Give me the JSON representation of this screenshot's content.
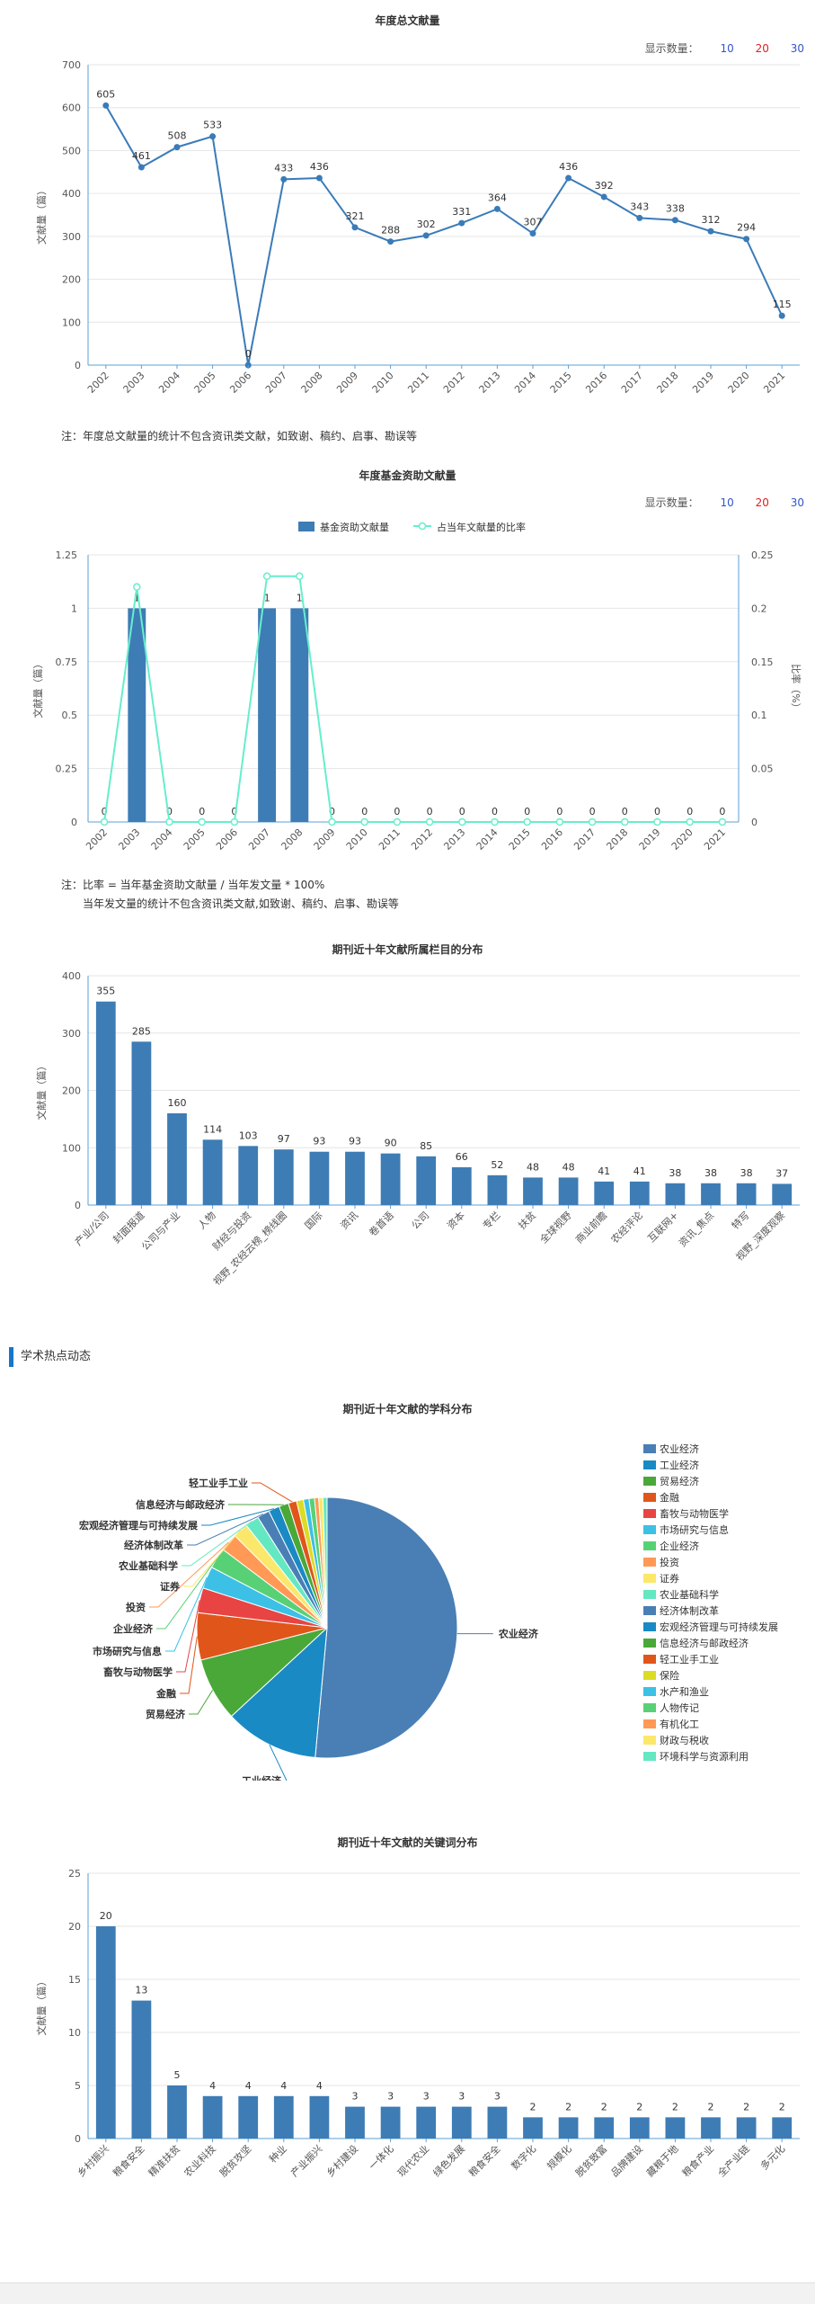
{
  "count_control": {
    "label": "显示数量：",
    "options": [
      "10",
      "20",
      "30"
    ],
    "colors": [
      "#3355cc",
      "#e02020",
      "#3355cc"
    ]
  },
  "section": {
    "title": "学术热点动态"
  },
  "notes": {
    "annual": "注：年度总文献量的统计不包含资讯类文献，如致谢、稿约、启事、勘误等",
    "fund_1": "注：比率 = 当年基金资助文献量 / 当年发文量 * 100%",
    "fund_2": "当年发文量的统计不包含资讯类文献,如致谢、稿约、启事、勘误等"
  },
  "colors": {
    "primary": "#3e7cb5",
    "line": "#3a7bb8",
    "ratio": "#66eecc",
    "grid": "#e6e6e6",
    "axis": "#5aa0d8",
    "section_accent": "#1677c8"
  },
  "chart_data": [
    {
      "type": "line",
      "title": "年度总文献量",
      "ylabel": "文献量（篇）",
      "ylim": [
        0,
        700
      ],
      "yticks": [
        0,
        100,
        200,
        300,
        400,
        500,
        600,
        700
      ],
      "grid": true,
      "x": [
        "2002",
        "2003",
        "2004",
        "2005",
        "2006",
        "2007",
        "2008",
        "2009",
        "2010",
        "2011",
        "2012",
        "2013",
        "2014",
        "2015",
        "2016",
        "2017",
        "2018",
        "2019",
        "2020",
        "2021"
      ],
      "values": [
        605,
        461,
        508,
        533,
        0,
        433,
        436,
        321,
        288,
        302,
        331,
        364,
        307,
        436,
        392,
        343,
        338,
        312,
        294,
        115
      ],
      "labels": [
        "605",
        "461",
        "508",
        "533",
        "0",
        "433",
        "436",
        "321",
        "288",
        "302",
        "331",
        "364",
        "307",
        "436",
        "392",
        "343",
        "338",
        "312",
        "294",
        "115"
      ]
    },
    {
      "type": "bar",
      "title": "年度基金资助文献量",
      "ylabel": "文献量（篇）",
      "y2label": "比率（%）",
      "ylim": [
        0,
        1.25
      ],
      "yticks": [
        "0",
        "0.25",
        "0.5",
        "0.75",
        "1",
        "1.25"
      ],
      "y2lim": [
        0,
        0.25
      ],
      "y2ticks": [
        "0",
        "0.05",
        "0.1",
        "0.15",
        "0.2",
        "0.25"
      ],
      "legend_position": "top",
      "x": [
        "2002",
        "2003",
        "2004",
        "2005",
        "2006",
        "2007",
        "2008",
        "2009",
        "2010",
        "2011",
        "2012",
        "2013",
        "2014",
        "2015",
        "2016",
        "2017",
        "2018",
        "2019",
        "2020",
        "2021"
      ],
      "series": [
        {
          "name": "基金资助文献量",
          "type": "bar",
          "values": [
            0,
            1,
            0,
            0,
            0,
            1,
            1,
            0,
            0,
            0,
            0,
            0,
            0,
            0,
            0,
            0,
            0,
            0,
            0,
            0
          ],
          "labels": [
            "0",
            "1",
            "0",
            "0",
            "0",
            "1",
            "1",
            "0",
            "0",
            "0",
            "0",
            "0",
            "0",
            "0",
            "0",
            "0",
            "0",
            "0",
            "0",
            "0"
          ]
        },
        {
          "name": "占当年文献量的比率",
          "type": "line",
          "axis": "right",
          "values": [
            0,
            0.22,
            0,
            0,
            0,
            0.23,
            0.23,
            0,
            0,
            0,
            0,
            0,
            0,
            0,
            0,
            0,
            0,
            0,
            0,
            0
          ]
        }
      ]
    },
    {
      "type": "bar",
      "title": "期刊近十年文献所属栏目的分布",
      "ylabel": "文献量（篇）",
      "ylim": [
        0,
        400
      ],
      "yticks": [
        0,
        100,
        200,
        300,
        400
      ],
      "categories": [
        "产业/公司",
        "封面报道",
        "公司与产业",
        "人物",
        "财经与投资",
        "视野_农经云榜_榜线圈",
        "国际",
        "资讯",
        "卷首语",
        "公司",
        "资本",
        "专栏",
        "扶贫",
        "全球视野",
        "商业前瞻",
        "农经评论",
        "互联网+",
        "资讯_焦点",
        "特写",
        "视野_深度观察"
      ],
      "values": [
        355,
        285,
        160,
        114,
        103,
        97,
        93,
        93,
        90,
        85,
        66,
        52,
        48,
        48,
        41,
        41,
        38,
        38,
        38,
        37
      ]
    },
    {
      "type": "pie",
      "title": "期刊近十年文献的学科分布",
      "legend_position": "right",
      "categories": [
        "农业经济",
        "工业经济",
        "贸易经济",
        "金融",
        "畜牧与动物医学",
        "市场研究与信息",
        "企业经济",
        "投资",
        "证券",
        "农业基础科学",
        "经济体制改革",
        "宏观经济管理与可持续发展",
        "信息经济与邮政经济",
        "轻工业手工业",
        "保险",
        "水产和渔业",
        "人物传记",
        "有机化工",
        "财政与税收",
        "环境科学与资源利用"
      ],
      "values": [
        300,
        68,
        46,
        34,
        18,
        16,
        15,
        13,
        11,
        10,
        9,
        8,
        7,
        6,
        5,
        4,
        4,
        3,
        3,
        3
      ],
      "colors": [
        "#4a7fb5",
        "#1a8ac4",
        "#4aa839",
        "#e0561a",
        "#e84444",
        "#3cc0e6",
        "#58d176",
        "#ff9955",
        "#fbe86b",
        "#64e8c2",
        "#4a7fb5",
        "#1a8ac4",
        "#4aa839",
        "#e0561a",
        "#dcdc25",
        "#3cc0e6",
        "#58d176",
        "#ff9955",
        "#fbe86b",
        "#64e8c2"
      ],
      "outside_labels": [
        "农业经济",
        "工业经济",
        "贸易经济",
        "金融",
        "畜牧与动物医学",
        "市场研究与信息",
        "企业经济",
        "投资",
        "证券",
        "农业基础科学",
        "经济体制改革",
        "宏观经济管理与可持续发展",
        "信息经济与邮政经济",
        "轻工业手工业"
      ]
    },
    {
      "type": "bar",
      "title": "期刊近十年文献的关键词分布",
      "ylabel": "文献量（篇）",
      "ylim": [
        0,
        25
      ],
      "yticks": [
        0,
        5,
        10,
        15,
        20,
        25
      ],
      "categories": [
        "乡村振兴",
        "粮食安全",
        "精准扶贫",
        "农业科技",
        "脱贫攻坚",
        "种业",
        "产业振兴",
        "乡村建设",
        "一体化",
        "现代农业",
        "绿色发展",
        "粮食安全",
        "数字化",
        "规模化",
        "脱贫致富",
        "品牌建设",
        "藏粮于地",
        "粮食产业",
        "全产业链",
        "多元化"
      ],
      "values": [
        20,
        13,
        5,
        4,
        4,
        4,
        4,
        3,
        3,
        3,
        3,
        3,
        2,
        2,
        2,
        2,
        2,
        2,
        2,
        2
      ]
    }
  ]
}
